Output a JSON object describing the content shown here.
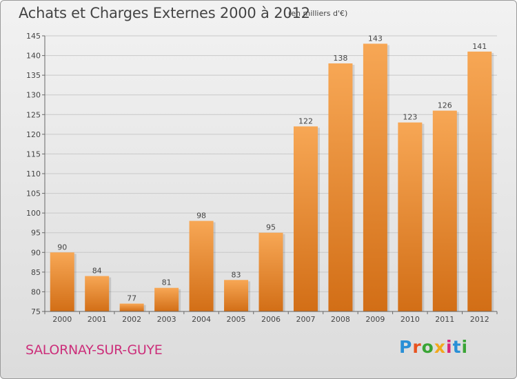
{
  "header": {
    "title": "Achats et Charges Externes 2000 à 2012",
    "unit": "(en milliers d'€)"
  },
  "footer": {
    "commune": "SALORNAY-SUR-GUYE",
    "logo_text": "Proxiti"
  },
  "colors": {
    "bar_light": "#f7a755",
    "bar_dark": "#d26e16",
    "grid": "#c8c8c8",
    "text": "#444444",
    "commune": "#cc2e7a"
  },
  "chart_data": {
    "type": "bar",
    "categories": [
      "2000",
      "2001",
      "2002",
      "2003",
      "2004",
      "2005",
      "2006",
      "2007",
      "2008",
      "2009",
      "2010",
      "2011",
      "2012"
    ],
    "values": [
      90,
      84,
      77,
      81,
      98,
      83,
      95,
      122,
      138,
      143,
      123,
      126,
      141
    ],
    "title": "Achats et Charges Externes 2000 à 2012",
    "ylabel": "",
    "xlabel": "",
    "ylim": [
      75,
      145
    ],
    "yticks": [
      75,
      80,
      85,
      90,
      95,
      100,
      105,
      110,
      115,
      120,
      125,
      130,
      135,
      140,
      145
    ],
    "grid": true,
    "data_labels": true
  }
}
